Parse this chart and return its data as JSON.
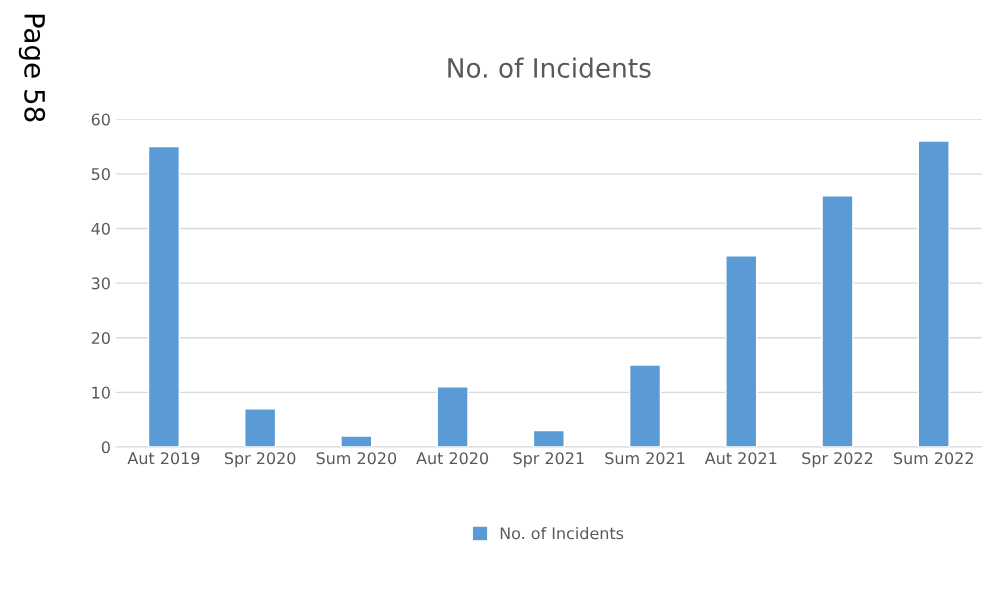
{
  "chart_data": {
    "type": "bar",
    "title": "No. of Incidents",
    "categories": [
      "Aut 2019",
      "Spr 2020",
      "Sum 2020",
      "Aut 2020",
      "Spr 2021",
      "Sum 2021",
      "Aut 2021",
      "Spr 2022",
      "Sum 2022"
    ],
    "series": [
      {
        "name": "No. of Incidents",
        "color": "#5b9bd5",
        "values": [
          55,
          7,
          2,
          11,
          3,
          15,
          35,
          46,
          56
        ]
      }
    ],
    "ylim": [
      0,
      60
    ],
    "yticks": [
      0,
      10,
      20,
      30,
      40,
      50,
      60
    ],
    "grid": "y",
    "legend": "bottom",
    "annotations": [
      "Page 58"
    ]
  }
}
